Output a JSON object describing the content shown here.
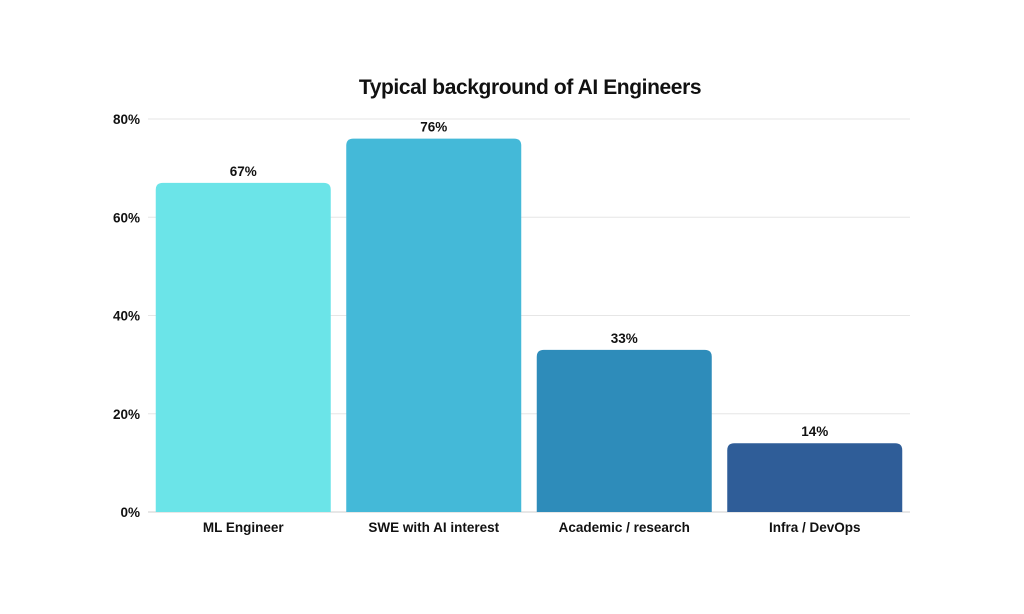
{
  "chart_data": {
    "type": "bar",
    "title": "Typical background of AI Engineers",
    "xlabel": "",
    "ylabel": "",
    "categories": [
      "ML Engineer",
      "SWE with AI interest",
      "Academic / research",
      "Infra / DevOps"
    ],
    "values": [
      67,
      76,
      33,
      14
    ],
    "value_labels": [
      "67%",
      "76%",
      "33%",
      "14%"
    ],
    "bar_colors": [
      "#6be4e8",
      "#44b9d8",
      "#2e8cba",
      "#2f5d98"
    ],
    "ylim": [
      0,
      80
    ],
    "yticks": [
      0,
      20,
      40,
      60,
      80
    ],
    "ytick_labels": [
      "0%",
      "20%",
      "40%",
      "60%",
      "80%"
    ],
    "grid": true,
    "legend": "none"
  }
}
